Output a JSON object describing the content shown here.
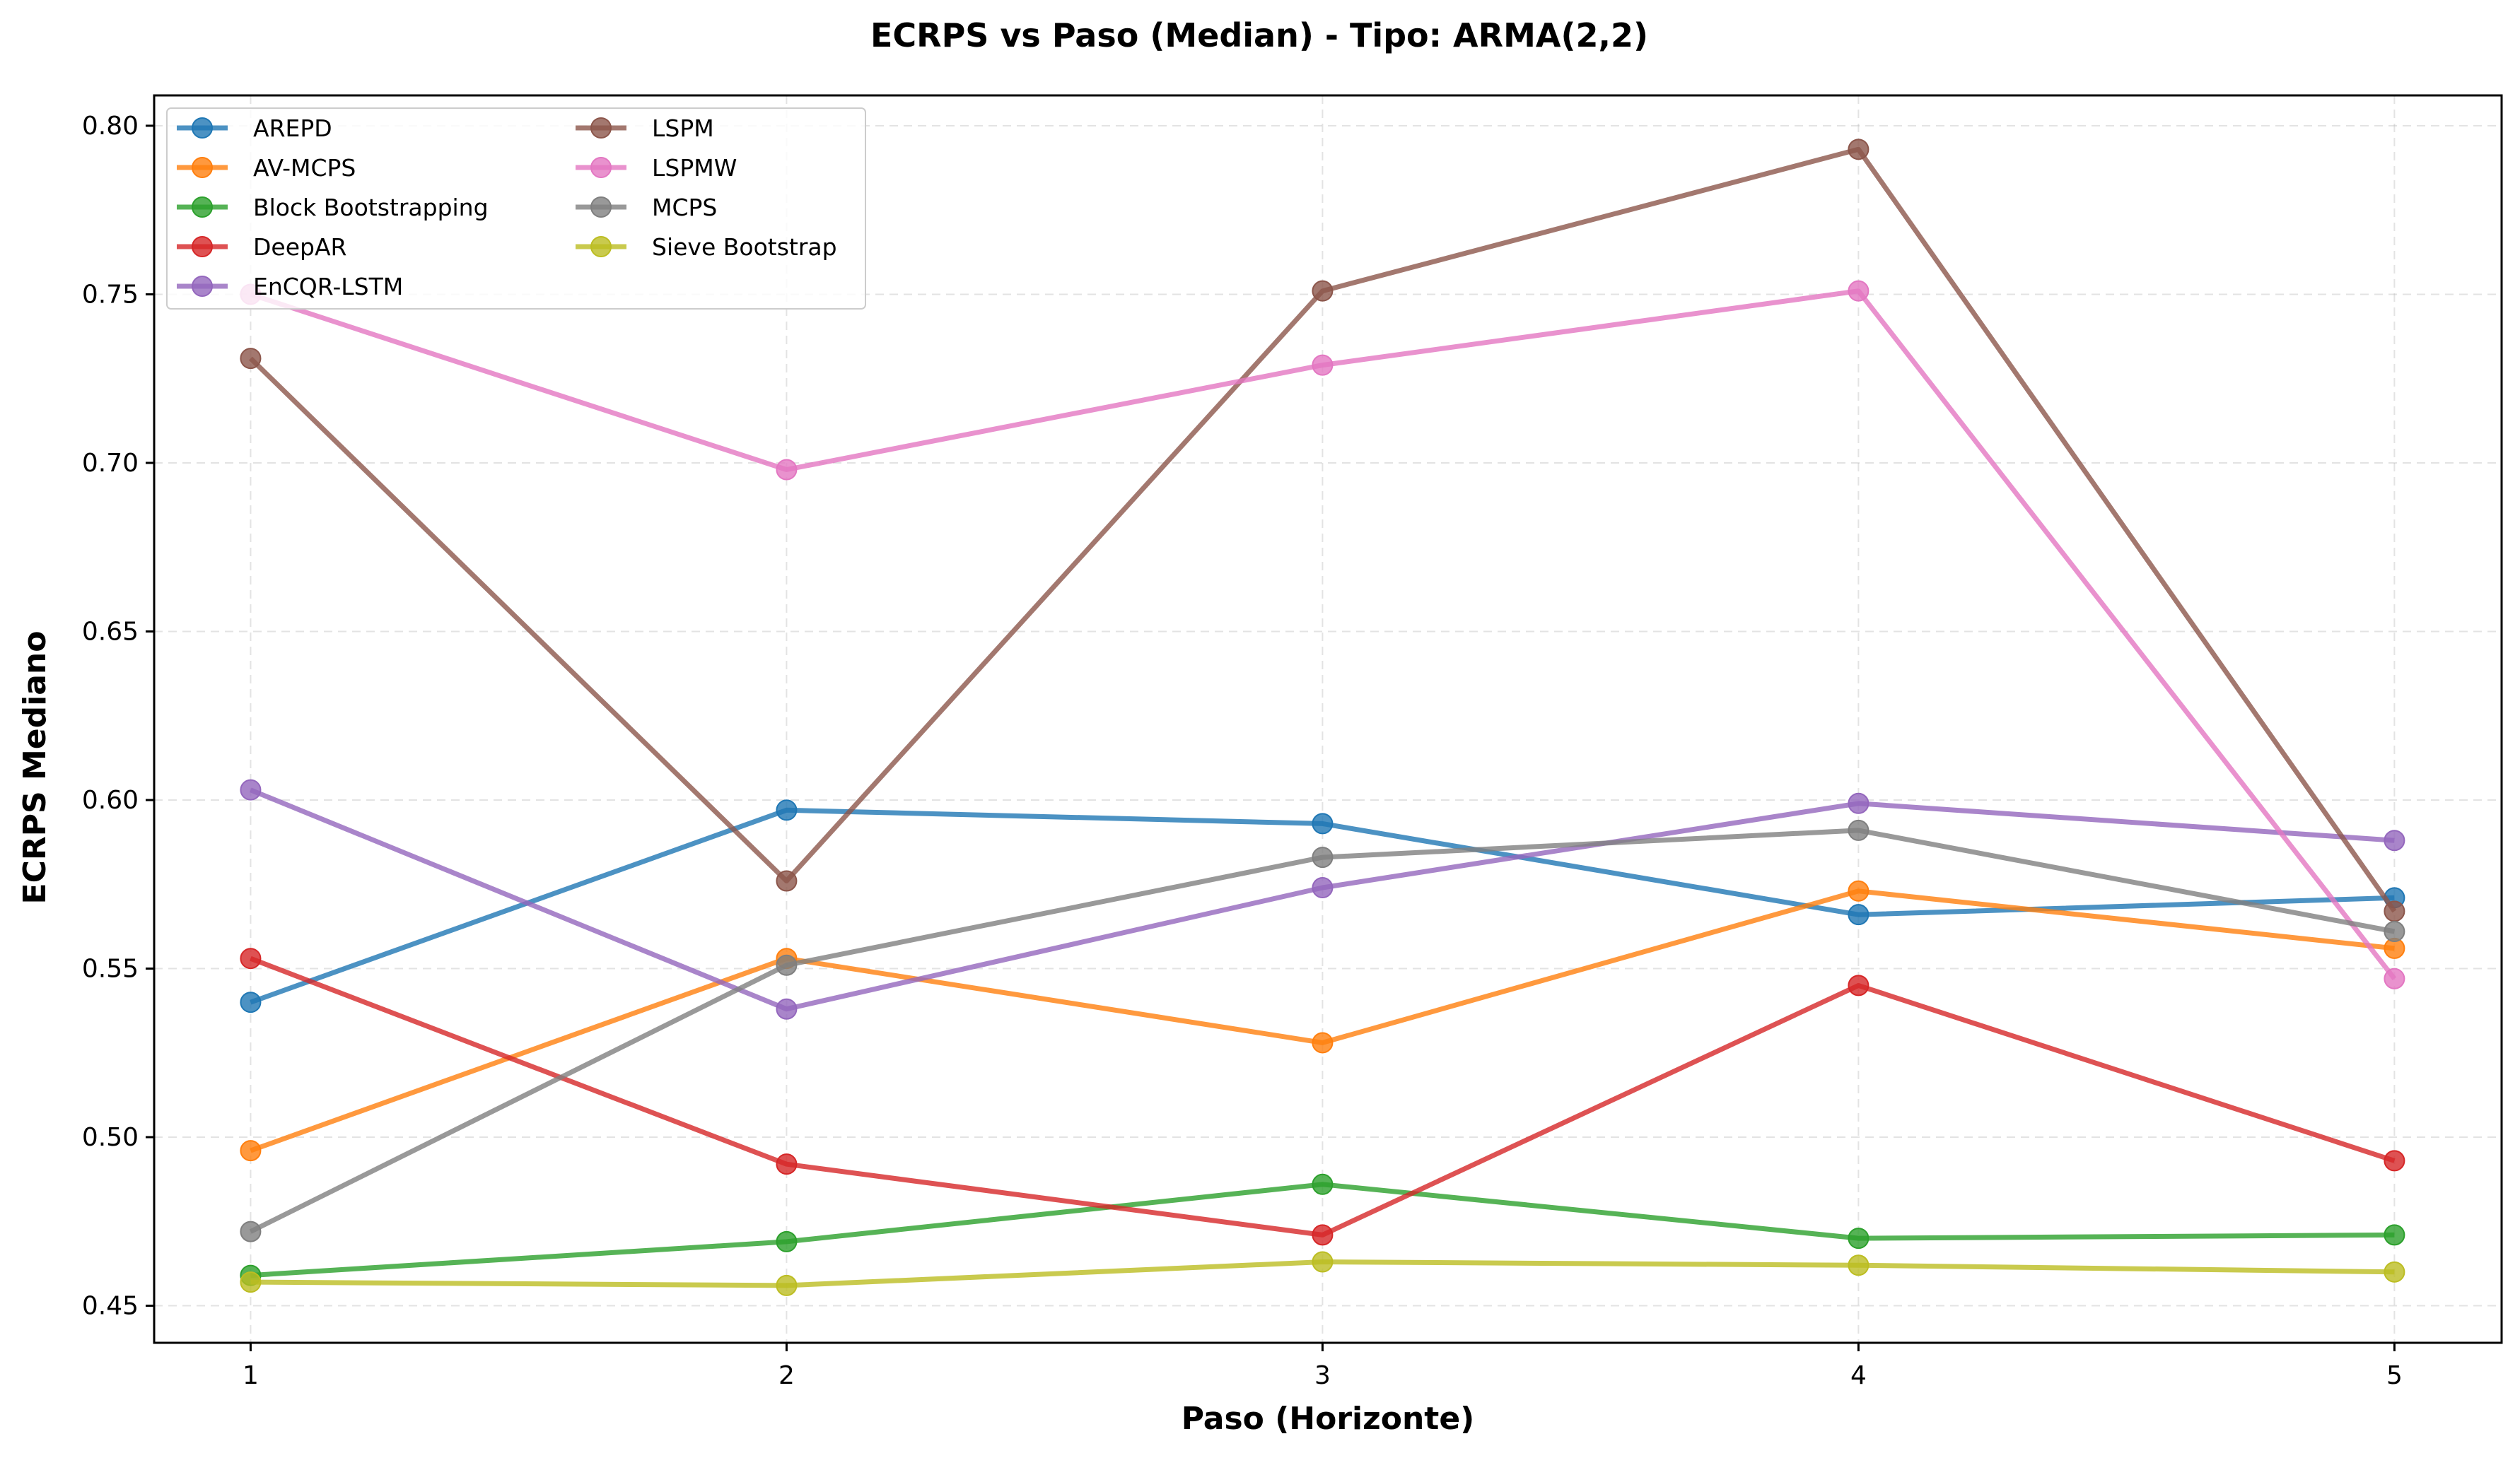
{
  "chart_data": {
    "type": "line",
    "title": "ECRPS vs Paso (Median) - Tipo: ARMA(2,2)",
    "xlabel": "Paso (Horizonte)",
    "ylabel": "ECRPS Mediano",
    "x": [
      1,
      2,
      3,
      4,
      5
    ],
    "x_tick_labels": [
      "1",
      "2",
      "3",
      "4",
      "5"
    ],
    "xlim": [
      0.82,
      5.2
    ],
    "ylim": [
      0.439,
      0.809
    ],
    "y_ticks": [
      0.45,
      0.5,
      0.55,
      0.6,
      0.65,
      0.7,
      0.75,
      0.8
    ],
    "y_tick_labels": [
      "0.45",
      "0.50",
      "0.55",
      "0.60",
      "0.65",
      "0.70",
      "0.75",
      "0.80"
    ],
    "grid": true,
    "legend_position": "top-left",
    "series": [
      {
        "name": "AREPD",
        "color": "#1f77b4",
        "values": [
          0.54,
          0.597,
          0.593,
          0.566,
          0.571
        ]
      },
      {
        "name": "AV-MCPS",
        "color": "#ff7f0e",
        "values": [
          0.496,
          0.553,
          0.528,
          0.573,
          0.556
        ]
      },
      {
        "name": "Block Bootstrapping",
        "color": "#2ca02c",
        "values": [
          0.459,
          0.469,
          0.486,
          0.47,
          0.471
        ]
      },
      {
        "name": "DeepAR",
        "color": "#d62728",
        "values": [
          0.553,
          0.492,
          0.471,
          0.545,
          0.493
        ]
      },
      {
        "name": "EnCQR-LSTM",
        "color": "#9467bd",
        "values": [
          0.603,
          0.538,
          0.574,
          0.599,
          0.588
        ]
      },
      {
        "name": "LSPM",
        "color": "#8c564b",
        "values": [
          0.731,
          0.576,
          0.751,
          0.793,
          0.567
        ]
      },
      {
        "name": "LSPMW",
        "color": "#e377c2",
        "values": [
          0.75,
          0.698,
          0.729,
          0.751,
          0.547
        ]
      },
      {
        "name": "MCPS",
        "color": "#7f7f7f",
        "values": [
          0.472,
          0.551,
          0.583,
          0.591,
          0.561
        ]
      },
      {
        "name": "Sieve Bootstrap",
        "color": "#bcbd22",
        "values": [
          0.457,
          0.456,
          0.463,
          0.462,
          0.46
        ]
      }
    ]
  }
}
